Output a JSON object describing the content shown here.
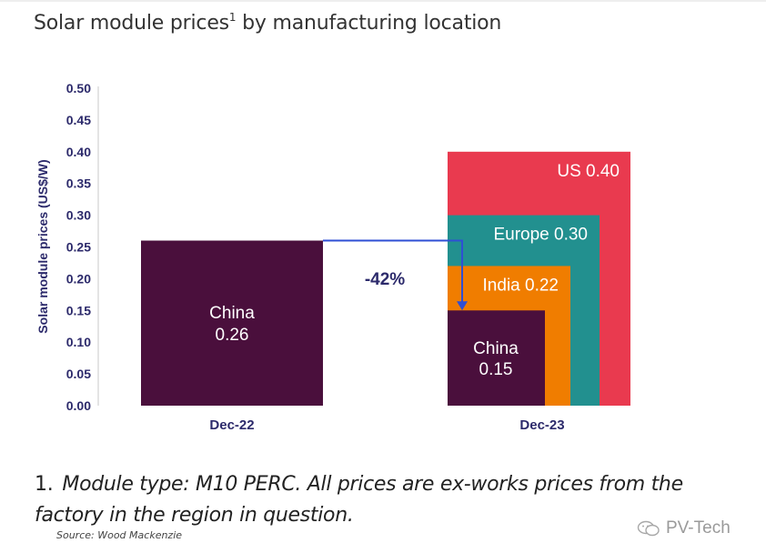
{
  "title_main": "Solar module prices",
  "title_sup": "1",
  "title_rest": " by manufacturing location",
  "footnote": {
    "number": "1.",
    "text": "Module type: M10 PERC. All prices are ex-works prices from the factory in the region in question."
  },
  "source": "Source: Wood Mackenzie",
  "watermark": "PV-Tech",
  "colors": {
    "axis_text": "#2c2a6b",
    "china": "#4a0f3c",
    "india": "#f07d00",
    "europe": "#22908f",
    "us": "#e93a4f",
    "arrow": "#2f4fd4"
  },
  "chart_data": {
    "type": "bar",
    "ylabel": "Solar module prices  (US$/W)",
    "ylim": [
      0,
      0.5
    ],
    "yticks": [
      "0.50",
      "0.45",
      "0.40",
      "0.35",
      "0.30",
      "0.25",
      "0.20",
      "0.15",
      "0.10",
      "0.05",
      "0.00"
    ],
    "categories": [
      "Dec-22",
      "Dec-23"
    ],
    "bars": [
      {
        "category": "Dec-22",
        "name": "China",
        "value": 0.26,
        "label_value": "0.26",
        "color_key": "china"
      },
      {
        "category": "Dec-23",
        "name": "US",
        "value": 0.4,
        "label_value": "0.40",
        "color_key": "us"
      },
      {
        "category": "Dec-23",
        "name": "Europe",
        "value": 0.3,
        "label_value": "0.30",
        "color_key": "europe"
      },
      {
        "category": "Dec-23",
        "name": "India",
        "value": 0.22,
        "label_value": "0.22",
        "color_key": "india"
      },
      {
        "category": "Dec-23",
        "name": "China",
        "value": 0.15,
        "label_value": "0.15",
        "color_key": "china"
      }
    ],
    "annotation": {
      "text": "-42%",
      "from_value": 0.26,
      "to_value": 0.15
    }
  }
}
